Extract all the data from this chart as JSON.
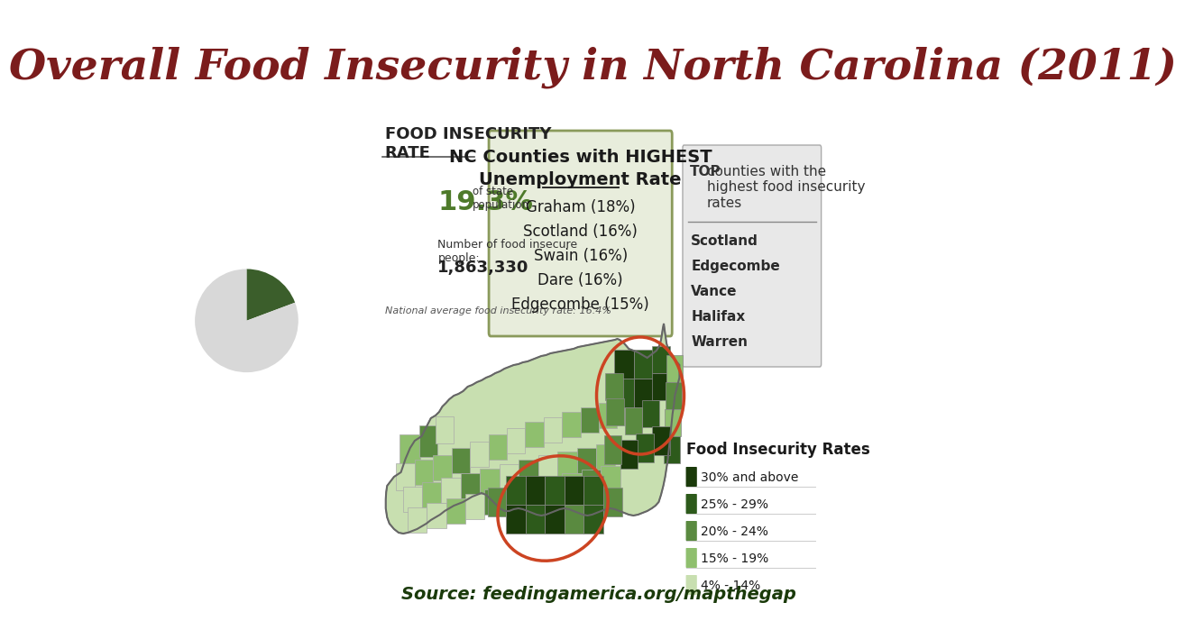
{
  "title": "Overall Food Insecurity in North Carolina (2011)",
  "title_color": "#7B1C1C",
  "title_fontsize": 34,
  "bg_color": "#FFFFFF",
  "food_insecurity_rate_label": "FOOD INSECURITY\nRATE",
  "pie_insecure_pct": 19.3,
  "pie_secure_pct": 80.7,
  "pie_insecure_color": "#3B5E2B",
  "pie_secure_color": "#D8D8D8",
  "pct_text": "19.3%",
  "pct_color": "#4E7A2A",
  "of_state_pop": "of state\npopulation",
  "num_insecure_label": "Number of food insecure\npeople:",
  "num_insecure_value": "1,863,330",
  "national_avg_note": "National average food insecurity rate: 16.4%",
  "unemployment_box_title_1": "NC Counties with HIGHEST",
  "unemployment_box_title_2": "Unemployment Rate",
  "unemployment_counties": [
    "Graham (18%)",
    "Scotland (16%)",
    "Swain (16%)",
    "Dare (16%)",
    "Edgecombe (15%)"
  ],
  "unemployment_box_bg": "#E8EDDC",
  "unemployment_box_border": "#8A9A5B",
  "unemployment_text_color": "#1A1A1A",
  "top_counties_title": "TOP counties with the\nhighest food insecurity\nrates",
  "top_counties": [
    "Scotland",
    "Edgecombe",
    "Vance",
    "Halifax",
    "Warren"
  ],
  "top_box_bg": "#E8E8E8",
  "legend_title": "Food Insecurity Rates",
  "legend_items": [
    {
      "color": "#1A3A0A",
      "label": "30% and above"
    },
    {
      "color": "#2D5A1B",
      "label": "25% - 29%"
    },
    {
      "color": "#5A8A40",
      "label": "20% - 24%"
    },
    {
      "color": "#8FBF6E",
      "label": "15% - 19%"
    },
    {
      "color": "#C8DFB0",
      "label": "4% - 14%"
    }
  ],
  "source_text": "Source: feedingamerica.org/mapthegap",
  "source_color": "#1A3A0A",
  "circle_color": "#CC4422",
  "circle_linewidth": 2.5,
  "map_colors": {
    "dark1": "#1A3A0A",
    "dark2": "#2D5A1B",
    "mid1": "#5A8A40",
    "mid2": "#8FBF6E",
    "light": "#C8DFB0"
  }
}
